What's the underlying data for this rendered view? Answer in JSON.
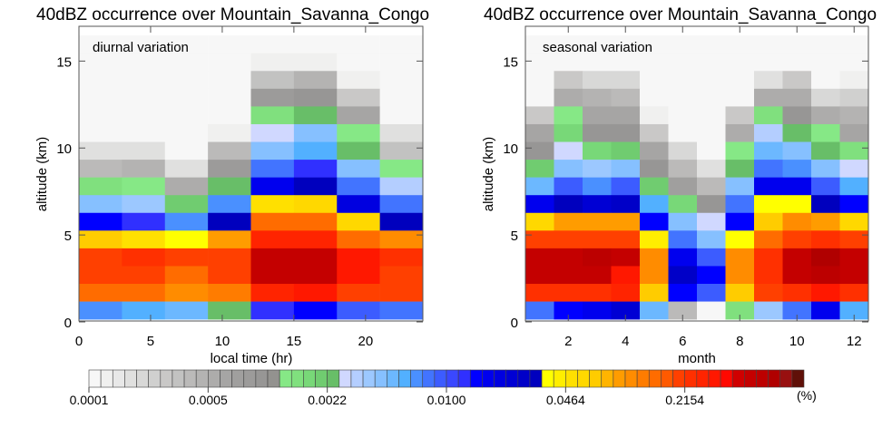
{
  "chart_data": [
    {
      "type": "heatmap",
      "title": "40dBZ occurrence over Mountain_Savanna_Congo",
      "panel_label": "diurnal variation",
      "xlabel": "local time (hr)",
      "ylabel": "altitude (km)",
      "xlim": [
        0,
        24
      ],
      "ylim": [
        0,
        17
      ],
      "xticks": [
        "0",
        "5",
        "10",
        "15",
        "20"
      ],
      "xtick_values": [
        0,
        5,
        10,
        15,
        20
      ],
      "yticks": [
        "0",
        "5",
        "10",
        "15"
      ],
      "ytick_values": [
        0,
        5,
        10,
        15
      ],
      "x_bin_start": 0,
      "x_bin_width": 3,
      "y_bin_bottom": 0.15,
      "y_bin_height": 1.02,
      "cell_bin_index_rows_top_to_bottom": [
        [
          0,
          0,
          0,
          0,
          0,
          0,
          0,
          0
        ],
        [
          0,
          0,
          0,
          0,
          1,
          1,
          0,
          0
        ],
        [
          0,
          0,
          0,
          0,
          7,
          9,
          1,
          0
        ],
        [
          0,
          0,
          0,
          0,
          13,
          14,
          6,
          0
        ],
        [
          0,
          0,
          0,
          0,
          17,
          20,
          11,
          0
        ],
        [
          0,
          0,
          0,
          1,
          21,
          24,
          16,
          3
        ],
        [
          3,
          3,
          0,
          8,
          24,
          26,
          20,
          7
        ],
        [
          8,
          9,
          3,
          13,
          28,
          31,
          24,
          16
        ],
        [
          17,
          16,
          10,
          20,
          33,
          37,
          28,
          22
        ],
        [
          24,
          23,
          19,
          27,
          40,
          41,
          34,
          28
        ],
        [
          32,
          31,
          27,
          37,
          47,
          47,
          41,
          37
        ],
        [
          42,
          40,
          38,
          44,
          51,
          51,
          47,
          45
        ],
        [
          49,
          50,
          49,
          49,
          55,
          55,
          52,
          50
        ],
        [
          49,
          49,
          47,
          49,
          55,
          55,
          52,
          49
        ],
        [
          47,
          47,
          45,
          46,
          51,
          52,
          49,
          49
        ],
        [
          27,
          26,
          25,
          20,
          31,
          32,
          29,
          28
        ]
      ]
    },
    {
      "type": "heatmap",
      "title": "40dBZ occurrence over Mountain_Savanna_Congo",
      "panel_label": "seasonal variation",
      "xlabel": "month",
      "ylabel": "altitude (km)",
      "xlim": [
        0.5,
        12.5
      ],
      "ylim": [
        0,
        17
      ],
      "xticks": [
        "2",
        "4",
        "6",
        "8",
        "10",
        "12"
      ],
      "xtick_values": [
        2,
        4,
        6,
        8,
        10,
        12
      ],
      "yticks": [
        "0",
        "5",
        "10",
        "15"
      ],
      "ytick_values": [
        0,
        5,
        10,
        15
      ],
      "x_bin_start": 0.5,
      "x_bin_width": 1,
      "y_bin_bottom": 0.15,
      "y_bin_height": 1.02,
      "cell_bin_index_rows_top_to_bottom": [
        [
          0,
          0,
          0,
          0,
          0,
          0,
          0,
          0,
          0,
          0,
          0,
          0
        ],
        [
          0,
          0,
          0,
          0,
          0,
          0,
          0,
          0,
          0,
          0,
          0,
          0
        ],
        [
          0,
          6,
          4,
          4,
          0,
          0,
          0,
          0,
          3,
          6,
          0,
          1
        ],
        [
          0,
          10,
          9,
          8,
          0,
          0,
          0,
          0,
          10,
          10,
          4,
          5
        ],
        [
          6,
          16,
          11,
          11,
          1,
          0,
          0,
          6,
          17,
          14,
          10,
          9
        ],
        [
          11,
          18,
          14,
          14,
          6,
          0,
          0,
          10,
          22,
          20,
          16,
          11
        ],
        [
          14,
          21,
          18,
          19,
          11,
          4,
          0,
          16,
          25,
          24,
          20,
          17
        ],
        [
          19,
          24,
          23,
          24,
          14,
          8,
          3,
          20,
          28,
          27,
          24,
          21
        ],
        [
          25,
          29,
          27,
          29,
          19,
          12,
          8,
          24,
          33,
          33,
          29,
          26
        ],
        [
          33,
          37,
          35,
          36,
          26,
          18,
          14,
          28,
          38,
          38,
          37,
          32
        ],
        [
          41,
          44,
          44,
          44,
          32,
          24,
          21,
          32,
          42,
          45,
          44,
          41
        ],
        [
          49,
          49,
          49,
          49,
          39,
          28,
          24,
          38,
          47,
          49,
          50,
          49
        ],
        [
          55,
          55,
          56,
          55,
          45,
          33,
          29,
          45,
          50,
          55,
          57,
          55
        ],
        [
          55,
          55,
          55,
          52,
          45,
          36,
          32,
          45,
          50,
          55,
          56,
          55
        ],
        [
          50,
          50,
          50,
          51,
          42,
          32,
          29,
          42,
          49,
          50,
          52,
          50
        ],
        [
          28,
          32,
          33,
          35,
          25,
          8,
          0,
          17,
          23,
          28,
          33,
          26
        ]
      ]
    }
  ],
  "colorbar": {
    "unit": "(%)",
    "log10_range": [
      -4,
      0
    ],
    "n_bins": 60,
    "tick_labels": [
      "0.0001",
      "0.0005",
      "0.0022",
      "0.0100",
      "0.0464",
      "0.2154"
    ],
    "colors": [
      "#f7f7f7",
      "#f0f0ef",
      "#e8e8e8",
      "#e0e0df",
      "#d8d8d7",
      "#d0d0cf",
      "#c9c8c7",
      "#c2c2c1",
      "#bbbab9",
      "#b4b3b2",
      "#adacab",
      "#a6a5a4",
      "#a09f9e",
      "#9c9b9a",
      "#979695",
      "#93928f",
      "#86e886",
      "#80e07e",
      "#78d878",
      "#70cc70",
      "#68be68",
      "#d0d8ff",
      "#b4ceff",
      "#9cc8ff",
      "#86c0ff",
      "#6cb8ff",
      "#52b0ff",
      "#4a90ff",
      "#4274ff",
      "#3c5cff",
      "#3a48ff",
      "#3030ff",
      "#0000ff",
      "#0000ee",
      "#0000e0",
      "#0000d4",
      "#0000c8",
      "#0000be",
      "#ffff00",
      "#ffee00",
      "#ffe000",
      "#ffd800",
      "#ffcc00",
      "#ffb400",
      "#ff9c00",
      "#ff8c00",
      "#ff7c00",
      "#ff6c00",
      "#ff5a00",
      "#ff4000",
      "#ff3000",
      "#ff2400",
      "#ff1800",
      "#ff0800",
      "#d00000",
      "#c40000",
      "#bc0000",
      "#b00000",
      "#981010",
      "#601008"
    ]
  }
}
